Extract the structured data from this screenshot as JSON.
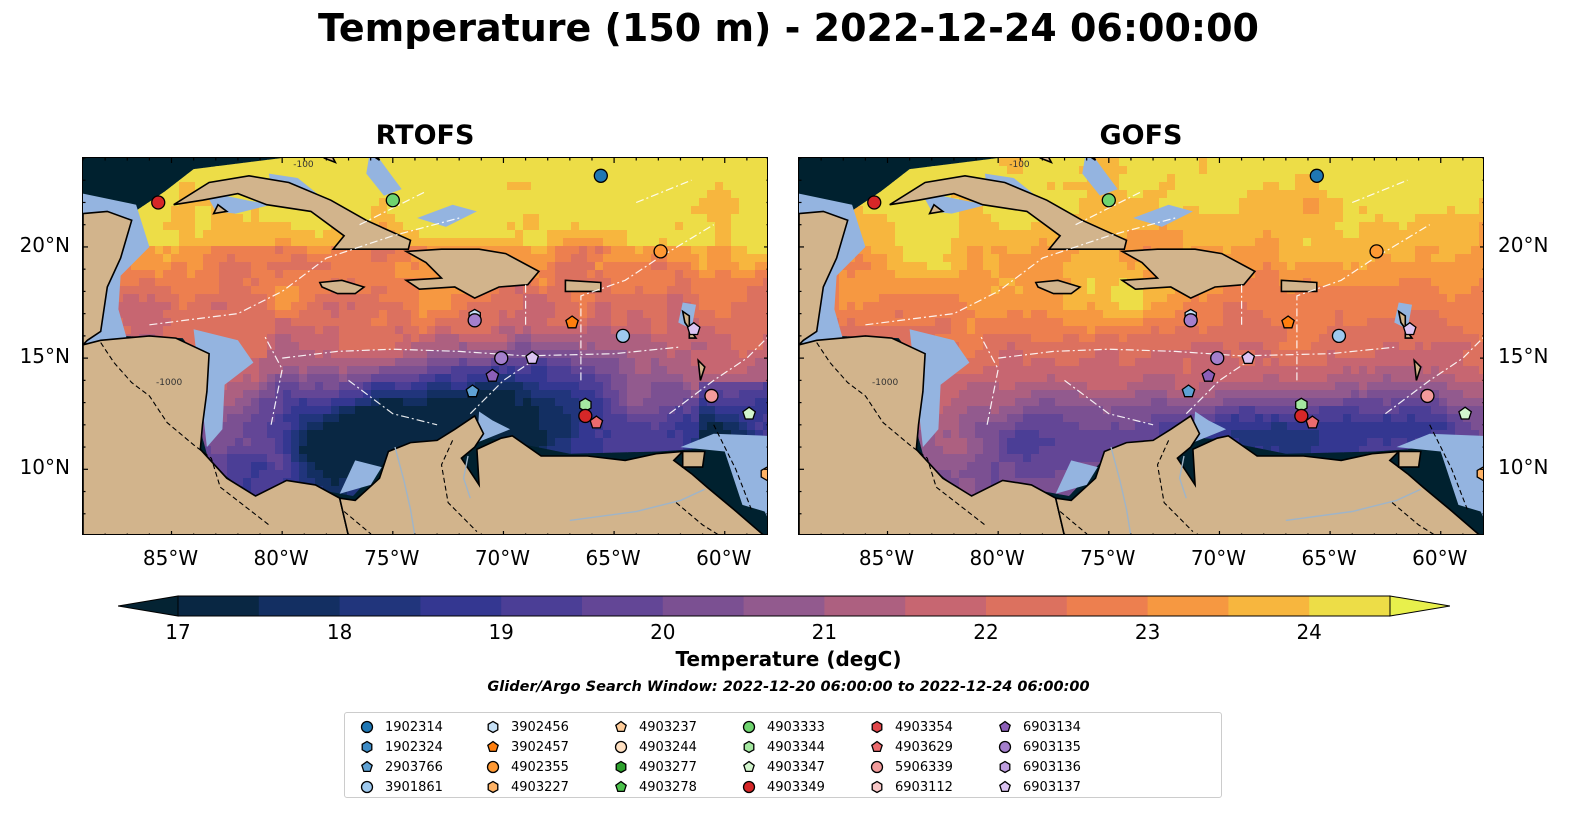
{
  "title": "Temperature (150 m) - 2022-12-24 06:00:00",
  "panels": [
    {
      "title": "RTOFS",
      "model": "rtofs"
    },
    {
      "title": "GOFS",
      "model": "gofs"
    }
  ],
  "lat_labels": [
    "20°N",
    "15°N",
    "10°N"
  ],
  "lon_labels": [
    "85°W",
    "80°W",
    "75°W",
    "70°W",
    "65°W",
    "60°W"
  ],
  "map_extent": {
    "lon_min": -89,
    "lon_max": -58,
    "lat_min": 7,
    "lat_max": 24
  },
  "contour_labels": [
    "-100",
    "-1000"
  ],
  "colorbar": {
    "label": "Temperature (degC)",
    "min": 17,
    "max": 24.5,
    "step": 0.5,
    "ticks": [
      "17",
      "18",
      "19",
      "20",
      "21",
      "22",
      "23",
      "24"
    ],
    "extend": "both",
    "colormap": "thermal"
  },
  "colors": {
    "ocean_deep": "#00212f",
    "land": "#d2b48c",
    "shelf_water": "#94b4e0",
    "hot": "#e9f04b"
  },
  "search_window": "Glider/Argo Search Window: 2022-12-20 06:00:00 to 2022-12-24 06:00:00",
  "legend": [
    {
      "id": "1902314",
      "marker": "circle",
      "color": "#1f77b4"
    },
    {
      "id": "1902324",
      "marker": "hexagon",
      "color": "#3e8cc6"
    },
    {
      "id": "2903766",
      "marker": "pentagon",
      "color": "#5fa2d4"
    },
    {
      "id": "3901861",
      "marker": "circle",
      "color": "#9ec9ee"
    },
    {
      "id": "3902456",
      "marker": "hexagon",
      "color": "#c6e1f7"
    },
    {
      "id": "3902457",
      "marker": "pentagon",
      "color": "#ff7f0e"
    },
    {
      "id": "4902355",
      "marker": "circle",
      "color": "#ff9933"
    },
    {
      "id": "4903227",
      "marker": "hexagon",
      "color": "#ffb366"
    },
    {
      "id": "4903237",
      "marker": "pentagon",
      "color": "#ffcc99"
    },
    {
      "id": "4903244",
      "marker": "circle",
      "color": "#ffe0c2"
    },
    {
      "id": "4903277",
      "marker": "hexagon",
      "color": "#2ca02c"
    },
    {
      "id": "4903278",
      "marker": "pentagon",
      "color": "#4cc24c"
    },
    {
      "id": "4903333",
      "marker": "circle",
      "color": "#6fd46f"
    },
    {
      "id": "4903344",
      "marker": "hexagon",
      "color": "#a4e8a0"
    },
    {
      "id": "4903347",
      "marker": "pentagon",
      "color": "#d2f5cd"
    },
    {
      "id": "4903349",
      "marker": "circle",
      "color": "#d62728"
    },
    {
      "id": "4903354",
      "marker": "hexagon",
      "color": "#e0464a"
    },
    {
      "id": "4903629",
      "marker": "pentagon",
      "color": "#ec6b6e"
    },
    {
      "id": "5906339",
      "marker": "circle",
      "color": "#f29b9b"
    },
    {
      "id": "6903112",
      "marker": "hexagon",
      "color": "#f8c7c7"
    },
    {
      "id": "6903134",
      "marker": "pentagon",
      "color": "#8c5fb8"
    },
    {
      "id": "6903135",
      "marker": "circle",
      "color": "#a47fcc"
    },
    {
      "id": "6903136",
      "marker": "hexagon",
      "color": "#bf9fe0"
    },
    {
      "id": "6903137",
      "marker": "pentagon",
      "color": "#dcc4f2"
    }
  ],
  "floats": [
    {
      "id": "1902314",
      "lon": -65.6,
      "lat": 23.2
    },
    {
      "id": "4903333",
      "lon": -75.0,
      "lat": 22.1
    },
    {
      "id": "4903349",
      "lon": -85.6,
      "lat": 22.0
    },
    {
      "id": "4902355",
      "lon": -62.9,
      "lat": 19.8
    },
    {
      "id": "3902456",
      "lon": -71.3,
      "lat": 16.9
    },
    {
      "id": "6903135",
      "lon": -71.3,
      "lat": 16.7
    },
    {
      "id": "3902457",
      "lon": -66.9,
      "lat": 16.6
    },
    {
      "id": "3901861",
      "lon": -64.6,
      "lat": 16.0
    },
    {
      "id": "6903137",
      "lon": -61.4,
      "lat": 16.3
    },
    {
      "id": "6903135",
      "lon": -70.1,
      "lat": 15.0
    },
    {
      "id": "6903137",
      "lon": -68.7,
      "lat": 15.0
    },
    {
      "id": "6903134",
      "lon": -70.5,
      "lat": 14.2
    },
    {
      "id": "2903766",
      "lon": -71.4,
      "lat": 13.5
    },
    {
      "id": "5906339",
      "lon": -60.6,
      "lat": 13.3
    },
    {
      "id": "4903347",
      "lon": -58.9,
      "lat": 12.5
    },
    {
      "id": "4903344",
      "lon": -66.3,
      "lat": 12.9
    },
    {
      "id": "4903349",
      "lon": -66.3,
      "lat": 12.4
    },
    {
      "id": "4903629",
      "lon": -65.8,
      "lat": 12.1
    },
    {
      "id": "4903227",
      "lon": -58.1,
      "lat": 9.8
    }
  ]
}
